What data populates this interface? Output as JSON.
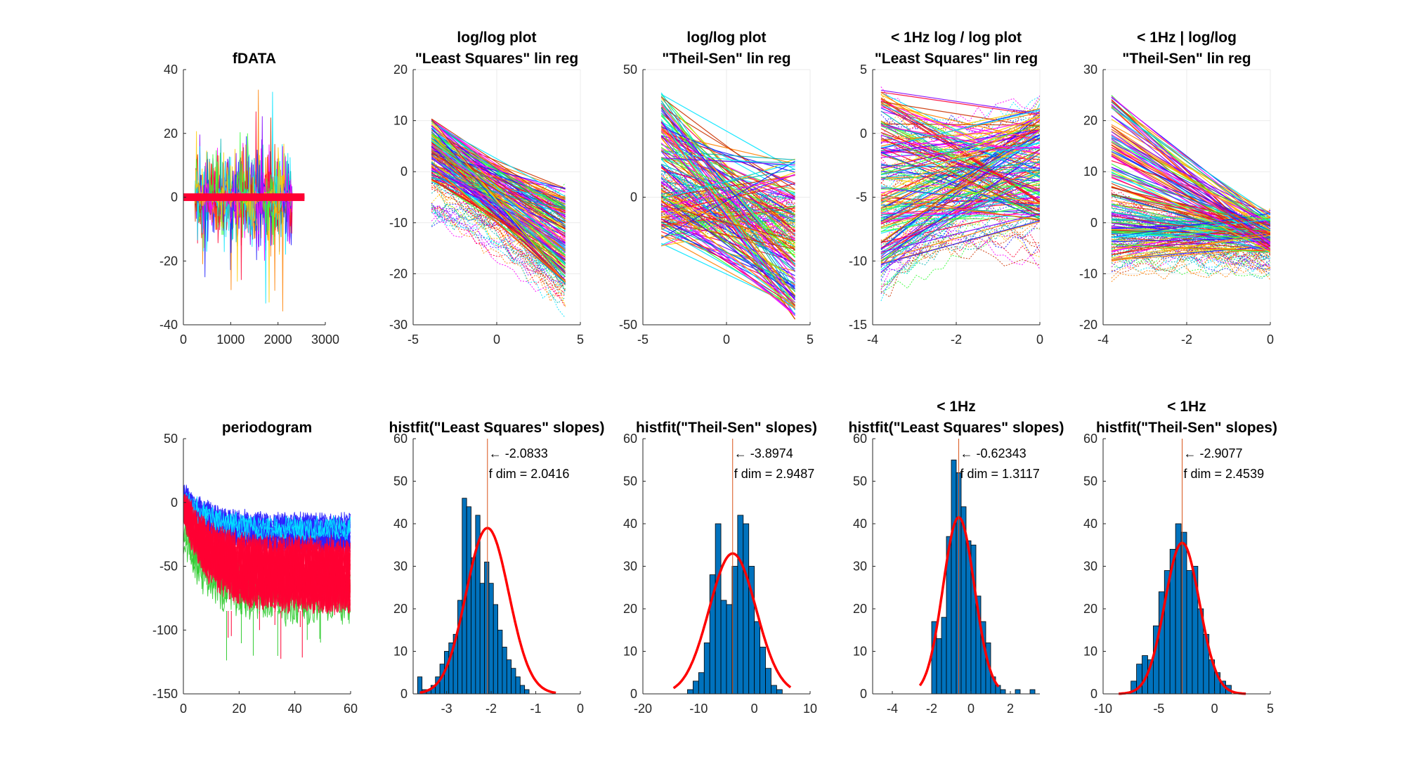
{
  "window": {
    "title": "Figure",
    "type": "matlab-figure"
  },
  "colors": {
    "background": "#ffffff",
    "axis": "#262626",
    "grid": "#ebebeb",
    "bar_fill": "#0072bd",
    "fit_curve": "#ff0000",
    "marker_line": "#d95319",
    "trace_palette": [
      "#ff0033",
      "#1a1aff",
      "#00e5ff",
      "#33ff33",
      "#ff00ff",
      "#ffcc00",
      "#8000ff",
      "#ff8000",
      "#00b3b3",
      "#cc3300"
    ]
  },
  "chart_data": [
    {
      "id": "fdata",
      "type": "line",
      "title": [
        "fDATA"
      ],
      "xlim": [
        0,
        3000
      ],
      "ylim": [
        -40,
        40
      ],
      "xticks": [
        0,
        1000,
        2000,
        3000
      ],
      "yticks": [
        -40,
        -20,
        0,
        20,
        40
      ],
      "grid": false,
      "description_series": "many overlapping colored time-series traces, approx 2560 samples each",
      "trace_extent": [
        0,
        2560
      ],
      "active_regions": [
        [
          250,
          2300
        ]
      ],
      "peak_amplitude": 40
    },
    {
      "id": "ls_fit",
      "type": "line",
      "title": [
        "log/log plot",
        "\"Least Squares\" lin reg"
      ],
      "xlim": [
        -5,
        5
      ],
      "ylim": [
        -30,
        20
      ],
      "xticks": [
        -5,
        0,
        5
      ],
      "yticks": [
        -30,
        -20,
        -10,
        0,
        10,
        20
      ],
      "grid": true,
      "x_range": [
        -3.9,
        4.1
      ],
      "data_band_left": [
        -10,
        7
      ],
      "data_band_right": [
        -28,
        -3
      ],
      "line_left_range": [
        -2,
        10.5
      ],
      "line_right_range": [
        -22,
        -3
      ]
    },
    {
      "id": "ts_fit",
      "type": "line",
      "title": [
        "log/log plot",
        "\"Theil-Sen\" lin reg"
      ],
      "xlim": [
        -5,
        5
      ],
      "ylim": [
        -50,
        50
      ],
      "xticks": [
        -5,
        0,
        5
      ],
      "yticks": [
        -50,
        0,
        50
      ],
      "grid": true,
      "x_range": [
        -3.9,
        4.1
      ],
      "data_band_left": [
        -10,
        10
      ],
      "data_band_right": [
        -22,
        0
      ],
      "line_left_range": [
        -20,
        41
      ],
      "line_right_range": [
        -48,
        15
      ]
    },
    {
      "id": "ls_fit_1hz",
      "type": "line",
      "title": [
        "< 1Hz log / log plot",
        "\"Least Squares\" lin reg"
      ],
      "xlim": [
        -4,
        0
      ],
      "ylim": [
        -15,
        5
      ],
      "xticks": [
        -4,
        -2,
        0
      ],
      "yticks": [
        -15,
        -10,
        -5,
        0,
        5
      ],
      "grid": true,
      "x_range": [
        -3.8,
        0
      ],
      "data_band_left": [
        -13,
        3.5
      ],
      "data_band_right": [
        -11,
        3
      ],
      "line_left_range": [
        -11,
        3.5
      ],
      "line_right_range": [
        -7,
        2
      ]
    },
    {
      "id": "ts_fit_1hz",
      "type": "line",
      "title": [
        "< 1Hz | log/log",
        "\"Theil-Sen\" lin reg"
      ],
      "xlim": [
        -4,
        0
      ],
      "ylim": [
        -20,
        30
      ],
      "xticks": [
        -4,
        -2,
        0
      ],
      "yticks": [
        -20,
        -10,
        0,
        10,
        20,
        30
      ],
      "grid": true,
      "x_range": [
        -3.8,
        0
      ],
      "data_band_left": [
        -11,
        5
      ],
      "data_band_right": [
        -10,
        2
      ],
      "line_left_range": [
        -8,
        25
      ],
      "line_right_range": [
        -6,
        2
      ]
    },
    {
      "id": "periodogram",
      "type": "line",
      "title": [
        "periodogram"
      ],
      "xlim": [
        0,
        60
      ],
      "ylim": [
        -150,
        50
      ],
      "xticks": [
        0,
        20,
        40,
        60
      ],
      "yticks": [
        -150,
        -100,
        -50,
        0,
        50
      ],
      "grid": false,
      "blue_band": {
        "start": [
          -5,
          15
        ],
        "end": [
          -40,
          -10
        ]
      },
      "red_band": {
        "start": [
          -15,
          8
        ],
        "end": [
          -85,
          -30
        ]
      },
      "outlier_floor": -125
    },
    {
      "id": "hist_ls",
      "type": "bar",
      "title": [
        "histfit(\"Least Squares\" slopes)"
      ],
      "xlim": [
        -3.75,
        0
      ],
      "ylim": [
        0,
        60
      ],
      "xticks": [
        -3,
        -2,
        -1,
        0
      ],
      "yticks": [
        0,
        10,
        20,
        30,
        40,
        50,
        60
      ],
      "bin_start": -3.65,
      "bin_width": 0.1,
      "values": [
        4,
        1,
        1,
        2,
        4,
        7,
        10,
        12,
        14,
        22,
        46,
        44,
        32,
        42,
        26,
        31,
        26,
        21,
        15,
        11,
        8,
        6,
        4,
        2,
        1
      ],
      "fit": {
        "mu": -2.0833,
        "sigma": 0.48,
        "peak": 39,
        "x_range": [
          -3.6,
          -0.55
        ]
      },
      "marker_x": -2.0833,
      "annotation": [
        "← -2.0833",
        "f dim = 2.0416"
      ],
      "annotation_anchor": [
        -2.0833,
        56.5
      ]
    },
    {
      "id": "hist_ts",
      "type": "bar",
      "title": [
        "histfit(\"Theil-Sen\" slopes)"
      ],
      "xlim": [
        -20,
        10
      ],
      "ylim": [
        0,
        60
      ],
      "xticks": [
        -20,
        -10,
        0,
        10
      ],
      "yticks": [
        0,
        10,
        20,
        30,
        40,
        50,
        60
      ],
      "bin_start": -12,
      "bin_width": 1,
      "values": [
        1,
        3,
        5,
        12,
        28,
        40,
        22,
        21,
        30,
        42,
        40,
        30,
        17,
        11,
        6,
        2,
        1
      ],
      "fit": {
        "mu": -3.8974,
        "sigma": 4.2,
        "peak": 33,
        "x_range": [
          -14.5,
          6.5
        ]
      },
      "marker_x": -3.8974,
      "annotation": [
        "← -3.8974",
        "f dim = 2.9487"
      ],
      "annotation_anchor": [
        -3.8974,
        56.5
      ]
    },
    {
      "id": "hist_ls_1hz",
      "type": "bar",
      "title": [
        "< 1Hz",
        "histfit(\"Least Squares\" slopes)"
      ],
      "xlim": [
        -5,
        3.5
      ],
      "ylim": [
        0,
        60
      ],
      "xticks": [
        -4,
        -2,
        0,
        2
      ],
      "yticks": [
        0,
        10,
        20,
        30,
        40,
        50,
        60
      ],
      "bin_start": -2.0,
      "bin_width": 0.25,
      "values": [
        17,
        13,
        18,
        37,
        55,
        52,
        44,
        36,
        35,
        23,
        17,
        12,
        4,
        2,
        1,
        0,
        0,
        1,
        0,
        0,
        1
      ],
      "fit": {
        "mu": -0.62343,
        "sigma": 0.8,
        "peak": 41.5,
        "x_range": [
          -2.6,
          1.4
        ]
      },
      "marker_x": -0.62343,
      "annotation": [
        "← -0.62343",
        "f dim = 1.3117"
      ],
      "annotation_anchor": [
        -0.62343,
        56.5
      ]
    },
    {
      "id": "hist_ts_1hz",
      "type": "bar",
      "title": [
        "< 1Hz",
        "histfit(\"Theil-Sen\" slopes)"
      ],
      "xlim": [
        -10,
        5
      ],
      "ylim": [
        0,
        60
      ],
      "xticks": [
        -10,
        -5,
        0,
        5
      ],
      "yticks": [
        0,
        10,
        20,
        30,
        40,
        50,
        60
      ],
      "bin_start": -7.5,
      "bin_width": 0.5,
      "values": [
        3,
        7,
        9,
        8,
        16,
        24,
        29,
        34,
        40,
        38,
        29,
        30,
        20,
        14,
        8,
        5,
        3,
        2
      ],
      "fit": {
        "mu": -2.9077,
        "sigma": 1.55,
        "peak": 35.5,
        "x_range": [
          -8.6,
          2.8
        ]
      },
      "marker_x": -2.9077,
      "annotation": [
        "← -2.9077",
        "f dim = 2.4539"
      ],
      "annotation_anchor": [
        -2.9077,
        56.5
      ]
    }
  ]
}
